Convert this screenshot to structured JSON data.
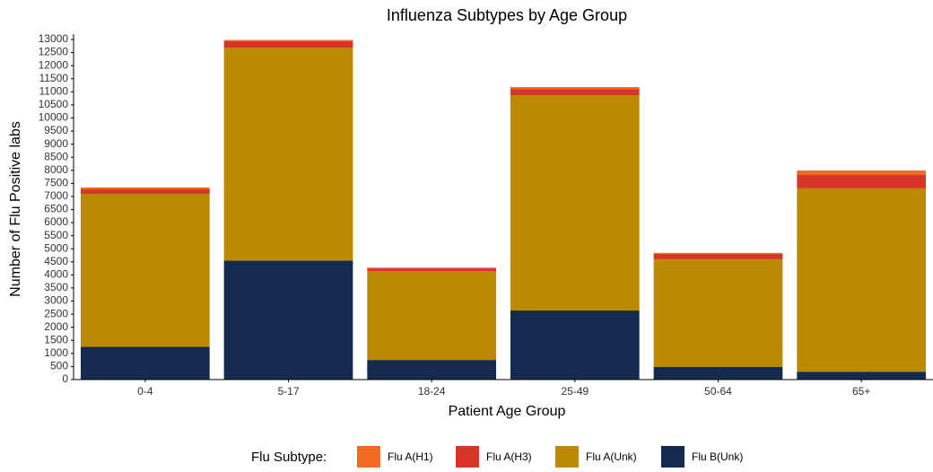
{
  "chart_data": {
    "type": "stacked-bar",
    "title": "Influenza Subtypes by Age Group",
    "x_label": "Patient Age Group",
    "y_label": "Number of Flu Positive labs",
    "legend_title": "Flu Subtype:",
    "categories": [
      "0-4",
      "5-17",
      "18-24",
      "25-49",
      "50-64",
      "65+"
    ],
    "series": [
      {
        "name": "Flu A(H1)",
        "color": "#f26a21",
        "values": [
          70,
          50,
          30,
          70,
          40,
          170
        ]
      },
      {
        "name": "Flu A(H3)",
        "color": "#d7352a",
        "values": [
          170,
          240,
          100,
          240,
          200,
          510
        ]
      },
      {
        "name": "Flu A(Unk)",
        "color": "#bb8a00",
        "values": [
          5850,
          8140,
          3400,
          8230,
          4120,
          7010
        ]
      },
      {
        "name": "Flu B(Unk)",
        "color": "#142a4e",
        "values": [
          1250,
          4550,
          750,
          2640,
          480,
          300
        ]
      }
    ],
    "ylim": [
      0,
      13000
    ],
    "yticks": [
      0,
      500,
      1000,
      1500,
      2000,
      2500,
      3000,
      3500,
      4000,
      4500,
      5000,
      5500,
      6000,
      6500,
      7000,
      7500,
      8000,
      8500,
      9000,
      9500,
      10000,
      10500,
      11000,
      11500,
      12000,
      12500,
      13000
    ],
    "legend_position": "bottom"
  }
}
